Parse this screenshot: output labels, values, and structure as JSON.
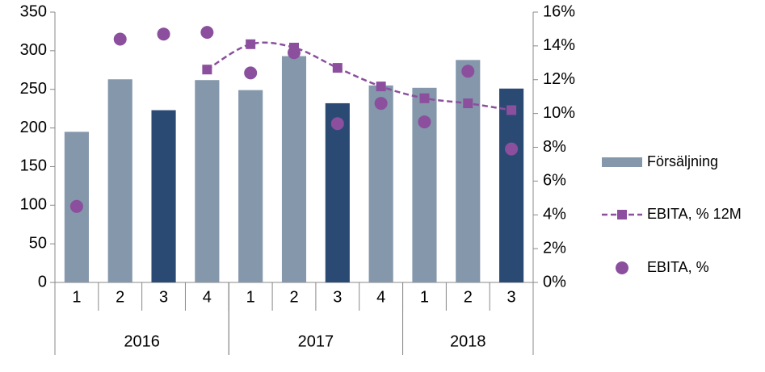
{
  "chart_data": {
    "type": "bar",
    "categories": [
      "1",
      "2",
      "3",
      "4",
      "1",
      "2",
      "3",
      "4",
      "1",
      "2",
      "3"
    ],
    "groups": [
      {
        "name": "2016",
        "span": 4
      },
      {
        "name": "2017",
        "span": 4
      },
      {
        "name": "2018",
        "span": 3
      }
    ],
    "series": [
      {
        "name": "Försäljning",
        "type": "bar",
        "color": "#8497ab",
        "colors": [
          "#8497ab",
          "#8497ab",
          "#2a4a73",
          "#8497ab",
          "#8497ab",
          "#8497ab",
          "#2a4a73",
          "#8497ab",
          "#8497ab",
          "#8497ab",
          "#2a4a73"
        ],
        "values": [
          195,
          263,
          223,
          262,
          249,
          293,
          232,
          255,
          252,
          288,
          251
        ]
      },
      {
        "name": "EBITA, % 12M",
        "type": "line",
        "axis": "y2",
        "color": "#8b4f9e",
        "dashed": true,
        "smooth": true,
        "values": [
          null,
          null,
          null,
          12.6,
          14.1,
          13.9,
          12.7,
          11.6,
          10.9,
          10.6,
          10.2
        ]
      },
      {
        "name": "EBITA, %",
        "type": "scatter",
        "axis": "y2",
        "color": "#8b4f9e",
        "values": [
          4.5,
          14.4,
          14.7,
          14.8,
          12.4,
          13.6,
          9.4,
          10.6,
          9.5,
          12.5,
          7.9
        ]
      }
    ],
    "ylim": [
      0,
      350
    ],
    "yticks": [
      0,
      50,
      100,
      150,
      200,
      250,
      300,
      350
    ],
    "y2lim": [
      0,
      16
    ],
    "y2ticks": [
      {
        "value": 0,
        "label": "0%"
      },
      {
        "value": 2,
        "label": "2%"
      },
      {
        "value": 4,
        "label": "4%"
      },
      {
        "value": 6,
        "label": "6%"
      },
      {
        "value": 8,
        "label": "8%"
      },
      {
        "value": 10,
        "label": "10%"
      },
      {
        "value": 12,
        "label": "12%"
      },
      {
        "value": 14,
        "label": "14%"
      },
      {
        "value": 16,
        "label": "16%"
      }
    ],
    "grid": false,
    "legend": "right"
  }
}
